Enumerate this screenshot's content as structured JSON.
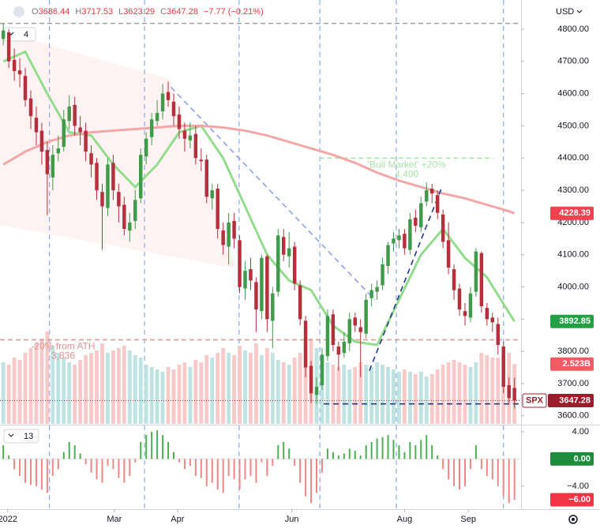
{
  "chart_data": {
    "type": "candlestick",
    "symbol": "SPX",
    "currency": "USD",
    "interval": "4",
    "header": {
      "labels": [
        "O",
        "H",
        "L",
        "C"
      ],
      "change": "−7.77 (−0.21%)"
    },
    "xlim": [
      -0.6,
      94.2
    ],
    "xticks": [
      {
        "value": 0.8,
        "label": "2022"
      },
      {
        "value": 20.2,
        "label": "Mar"
      },
      {
        "value": 31.7,
        "label": "Apr"
      },
      {
        "value": 52.5,
        "label": "Jun"
      },
      {
        "value": 73,
        "label": "Aug"
      },
      {
        "value": 84.6,
        "label": "Sep"
      }
    ],
    "ylim": [
      3575,
      4822
    ],
    "yticks": [
      {
        "value": 4800,
        "label": "4800.00"
      },
      {
        "value": 4700,
        "label": "4700.00"
      },
      {
        "value": 4600,
        "label": "4600.00"
      },
      {
        "value": 4500,
        "label": "4500.00"
      },
      {
        "value": 4400,
        "label": "4400.00"
      },
      {
        "value": 4300,
        "label": "4300.00"
      },
      {
        "value": 4200,
        "label": "4200.00"
      },
      {
        "value": 4100,
        "label": "4100.00"
      },
      {
        "value": 4000,
        "label": "4000.00"
      },
      {
        "value": 3900,
        "label": "3900.00"
      },
      {
        "value": 3800,
        "label": "3800.00"
      },
      {
        "value": 3700,
        "label": "3700.00"
      },
      {
        "value": 3600,
        "label": "3600.00"
      }
    ],
    "open": [
      4770,
      4790,
      4705,
      4672,
      4655,
      4585,
      4525,
      4485,
      4425,
      4340,
      4415,
      4435,
      4515,
      4565,
      4495,
      4485,
      4415,
      4385,
      4295,
      4245,
      4385,
      4295,
      4255,
      4175,
      4205,
      4275,
      4405,
      4465,
      4515,
      4545,
      4605,
      4575,
      4535,
      4485,
      4455,
      4475,
      4395,
      4395,
      4275,
      4305,
      4175,
      4125,
      4205,
      4145,
      3995,
      4055,
      4015,
      3925,
      4095,
      3895,
      3985,
      4155,
      4095,
      4125,
      4005,
      3895,
      3755,
      3665,
      3695,
      3785,
      3915,
      3815,
      3795,
      3825,
      3905,
      3875,
      3855,
      3965,
      3985,
      4005,
      4065,
      4135,
      4145,
      4165,
      4115,
      4215,
      4185,
      4265,
      4305,
      4285,
      4225,
      4145,
      4055,
      3995,
      3925,
      3905,
      3985,
      4105,
      3935,
      3905,
      3885,
      3815,
      3695,
      3686.44
    ],
    "high": [
      4818,
      4800,
      4740,
      4710,
      4680,
      4610,
      4560,
      4510,
      4450,
      4440,
      4470,
      4550,
      4595,
      4590,
      4530,
      4510,
      4440,
      4400,
      4320,
      4400,
      4410,
      4320,
      4280,
      4230,
      4300,
      4430,
      4480,
      4540,
      4580,
      4630,
      4637,
      4600,
      4560,
      4510,
      4510,
      4500,
      4430,
      4410,
      4320,
      4320,
      4200,
      4230,
      4230,
      4160,
      4080,
      4090,
      4030,
      4100,
      4100,
      4000,
      4180,
      4180,
      4170,
      4140,
      4020,
      3910,
      3770,
      3720,
      3810,
      3930,
      3930,
      3830,
      3860,
      3920,
      3920,
      3900,
      3980,
      4010,
      4020,
      4090,
      4140,
      4170,
      4180,
      4180,
      4230,
      4240,
      4280,
      4325,
      4320,
      4300,
      4240,
      4200,
      4070,
      4010,
      3950,
      4000,
      4120,
      4110,
      3950,
      3920,
      3905,
      3830,
      3720,
      3717.53
    ],
    "low": [
      4750,
      4680,
      4640,
      4620,
      4560,
      4490,
      4440,
      4380,
      4222,
      4300,
      4390,
      4420,
      4490,
      4470,
      4440,
      4390,
      4340,
      4270,
      4115,
      4220,
      4270,
      4200,
      4160,
      4140,
      4180,
      4260,
      4380,
      4440,
      4500,
      4520,
      4560,
      4500,
      4460,
      4420,
      4430,
      4380,
      4360,
      4260,
      4240,
      4150,
      4100,
      4070,
      4120,
      3980,
      3960,
      3990,
      3860,
      3900,
      3860,
      3810,
      3970,
      4080,
      4060,
      3990,
      3880,
      3720,
      3640,
      3637,
      3680,
      3770,
      3800,
      3740,
      3780,
      3800,
      3860,
      3720,
      3840,
      3940,
      3960,
      3990,
      4040,
      4110,
      4120,
      4100,
      4100,
      4170,
      4170,
      4250,
      4260,
      4210,
      4120,
      4040,
      3960,
      3910,
      3880,
      3890,
      3970,
      3920,
      3880,
      3860,
      3790,
      3670,
      3640,
      3623.29
    ],
    "close": [
      4796,
      4700,
      4670,
      4660,
      4580,
      4530,
      4480,
      4420,
      4350,
      4410,
      4430,
      4520,
      4560,
      4500,
      4480,
      4420,
      4380,
      4300,
      4250,
      4380,
      4300,
      4250,
      4180,
      4200,
      4270,
      4410,
      4460,
      4520,
      4540,
      4600,
      4580,
      4530,
      4490,
      4460,
      4470,
      4400,
      4390,
      4280,
      4300,
      4180,
      4130,
      4200,
      4150,
      4000,
      4050,
      4020,
      3930,
      4090,
      3900,
      3980,
      4160,
      4100,
      4120,
      4010,
      3900,
      3750,
      3670,
      3690,
      3790,
      3910,
      3820,
      3790,
      3830,
      3900,
      3880,
      3860,
      3960,
      3990,
      4000,
      4070,
      4130,
      4150,
      4160,
      4120,
      4210,
      4190,
      4260,
      4300,
      4290,
      4230,
      4140,
      4060,
      3990,
      3930,
      3910,
      3980,
      4110,
      3940,
      3900,
      3890,
      3820,
      3690,
      3655.05,
      3647.28
    ],
    "colors": {
      "up": "#3f9a4a",
      "down": "#b4303c"
    },
    "moving_averages": [
      {
        "color": "#93dc8e",
        "x": [
          0,
          4,
          8,
          12,
          16,
          20,
          24,
          28,
          32,
          36,
          40,
          44,
          48,
          52,
          56,
          60,
          64,
          68,
          72,
          76,
          80,
          84,
          88,
          92,
          93
        ],
        "values": [
          4700,
          4730,
          4600,
          4480,
          4470,
          4380,
          4310,
          4380,
          4480,
          4500,
          4400,
          4250,
          4100,
          4020,
          3990,
          3880,
          3830,
          3820,
          3960,
          4100,
          4180,
          4090,
          4030,
          3920,
          3892.85
        ]
      },
      {
        "color": "#f3a7a7",
        "x": [
          0,
          4,
          8,
          12,
          16,
          20,
          24,
          28,
          32,
          36,
          40,
          44,
          48,
          52,
          56,
          60,
          64,
          68,
          72,
          76,
          80,
          84,
          88,
          92,
          93
        ],
        "values": [
          4380,
          4420,
          4450,
          4470,
          4480,
          4485,
          4490,
          4495,
          4500,
          4500,
          4495,
          4485,
          4470,
          4450,
          4430,
          4410,
          4385,
          4355,
          4330,
          4310,
          4290,
          4275,
          4255,
          4235,
          4228.39
        ]
      }
    ],
    "volume": {
      "ylim": [
        0,
        4
      ],
      "last_label": "2.523B",
      "up_color": "#bfe3e0",
      "down_color": "#f8c9c9",
      "values": [
        2.6,
        2.5,
        2.8,
        2.7,
        3.0,
        3.2,
        3.4,
        3.6,
        3.9,
        3.3,
        3.0,
        2.8,
        2.6,
        2.5,
        2.7,
        2.9,
        3.0,
        3.1,
        3.4,
        3.0,
        3.1,
        3.2,
        3.3,
        3.1,
        2.9,
        2.8,
        2.5,
        2.4,
        2.3,
        2.2,
        2.4,
        2.3,
        2.5,
        2.6,
        2.4,
        2.7,
        2.6,
        2.9,
        2.8,
        3.0,
        3.2,
        3.0,
        2.9,
        3.3,
        3.1,
        3.0,
        3.4,
        2.9,
        3.2,
        3.0,
        2.7,
        2.6,
        2.5,
        2.8,
        3.0,
        3.5,
        3.6,
        3.2,
        2.9,
        2.6,
        2.5,
        2.4,
        2.5,
        2.3,
        2.4,
        2.6,
        2.5,
        2.4,
        2.6,
        2.5,
        2.4,
        2.3,
        2.2,
        2.3,
        2.2,
        2.1,
        2.2,
        2.0,
        2.1,
        2.3,
        2.5,
        2.6,
        2.7,
        2.6,
        2.5,
        2.4,
        2.6,
        3.0,
        2.9,
        2.8,
        2.8,
        2.9,
        3.0,
        2.523
      ]
    },
    "event_lines": [
      8.4,
      25.7,
      42.9,
      57.6,
      71.5,
      91
    ],
    "trend_lines": [
      {
        "color": "#8f9fe8",
        "x": [
          30.5,
          67.6
        ],
        "y": [
          4620,
          3960
        ]
      },
      {
        "color": "#1f3a8f",
        "x": [
          66.6,
          79.8
        ],
        "y": [
          3740,
          4310
        ]
      },
      {
        "color": "#1f3a8f",
        "x": [
          58.3,
          94.2
        ],
        "y": [
          3637,
          3637
        ]
      }
    ],
    "levels": [
      {
        "value": 4818,
        "color": "#9e9e9e",
        "x": [
          -0.6,
          94.2
        ]
      },
      {
        "value": 4400,
        "label": "4,400",
        "text": "'Bull Market' +20%",
        "color": "#a9e3a9",
        "x": [
          57.5,
          89.3
        ]
      },
      {
        "value": 3836,
        "label": "3,836",
        "text": "-20% from ATH",
        "color": "#e79292",
        "x": [
          -0.6,
          94.2
        ]
      }
    ],
    "indicator": {
      "type": "histogram",
      "length": "13",
      "ylim": [
        -6.56,
        4.8
      ],
      "up_color": "#4caf50",
      "down_color": "#f08686",
      "yticks": [
        {
          "value": 4,
          "label": "4.00"
        },
        {
          "value": -4,
          "label": "−4.00"
        }
      ],
      "tags": [
        {
          "value": 0,
          "label": "0.00",
          "color": "#1e8c3c"
        },
        {
          "value": -6,
          "label": "−6.00",
          "color": "#f23645"
        }
      ],
      "values": [
        2.0,
        0.5,
        -1.5,
        -2.5,
        -3.5,
        -3.8,
        -4.0,
        -4.5,
        -5.0,
        -2.5,
        -1.5,
        1.0,
        2.5,
        2.0,
        0.8,
        -0.8,
        -2.0,
        -3.0,
        -3.5,
        -1.0,
        -1.5,
        -2.8,
        -3.5,
        -2.5,
        -0.5,
        2.5,
        3.5,
        4.0,
        4.2,
        3.5,
        2.5,
        1.0,
        -0.5,
        -1.5,
        -1.0,
        -2.5,
        -2.8,
        -4.0,
        -3.5,
        -4.5,
        -5.0,
        -2.5,
        -3.0,
        -4.5,
        -3.0,
        -2.5,
        -3.5,
        -0.5,
        -2.5,
        -1.0,
        2.0,
        2.5,
        1.5,
        -1.0,
        -3.5,
        -5.5,
        -6.5,
        -5.0,
        -2.0,
        1.5,
        1.0,
        0.5,
        0.8,
        1.5,
        1.2,
        0.5,
        2.0,
        2.5,
        3.0,
        3.2,
        3.5,
        2.8,
        2.0,
        1.0,
        2.5,
        2.0,
        2.8,
        3.5,
        2.0,
        0.5,
        -1.5,
        -3.0,
        -4.0,
        -4.5,
        -4.0,
        -1.5,
        2.0,
        -1.5,
        -2.5,
        -3.0,
        -4.0,
        -5.5,
        -6.5,
        -6.0
      ]
    }
  }
}
